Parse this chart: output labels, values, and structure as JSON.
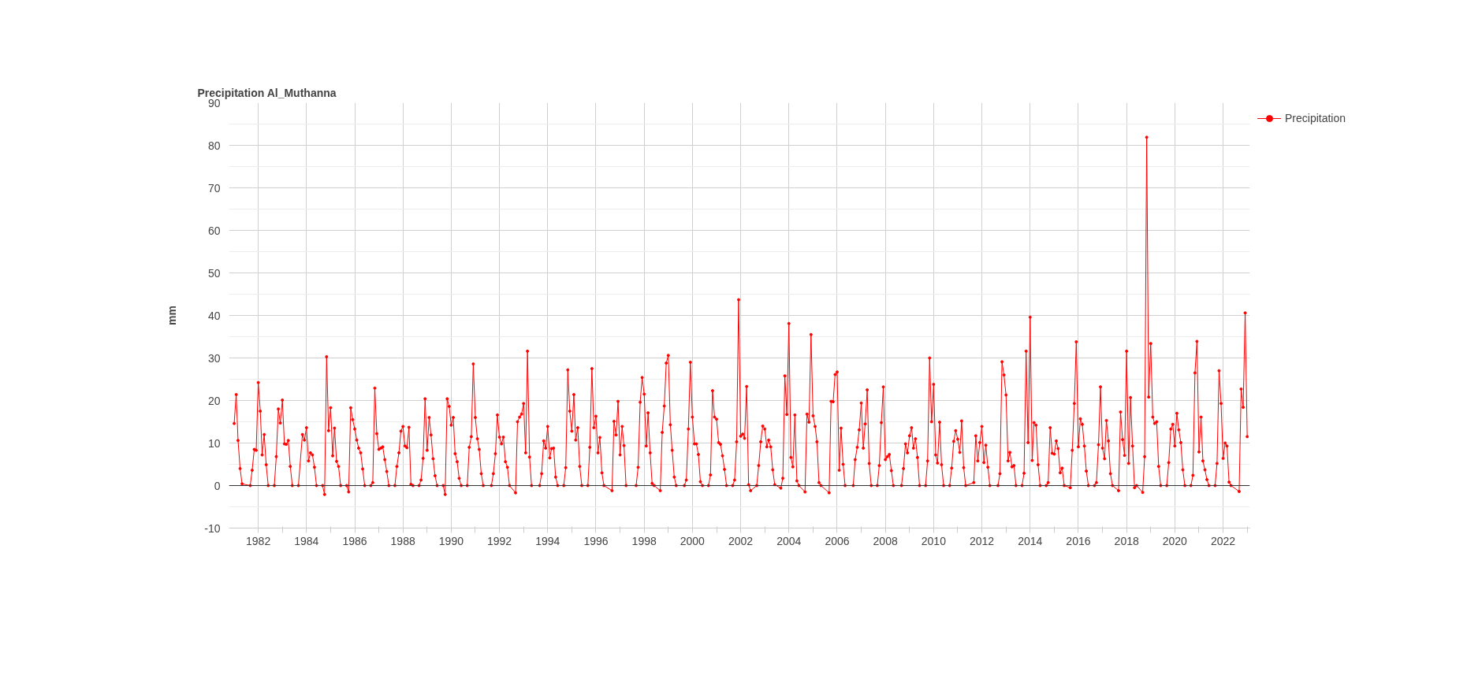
{
  "chart_data": {
    "type": "line",
    "title": "Precipitation Al_Muthanna",
    "ylabel": "mm",
    "xlim": [
      "1980-10-15",
      "2023-02-10"
    ],
    "ylim": [
      -10,
      90
    ],
    "yticks": [
      -10,
      0,
      10,
      20,
      30,
      40,
      50,
      60,
      70,
      80,
      90
    ],
    "xticks": [
      "1982",
      {
        "value": "1983",
        "label": null
      },
      "1984",
      {
        "value": "1985",
        "label": null
      },
      "1986",
      {
        "value": "1987",
        "label": null
      },
      "1988",
      {
        "value": "1989",
        "label": null
      },
      "1990",
      {
        "value": "1991",
        "label": null
      },
      "1992",
      {
        "value": "1993",
        "label": null
      },
      "1994",
      {
        "value": "1995",
        "label": null
      },
      "1996",
      {
        "value": "1997",
        "label": null
      },
      "1998",
      {
        "value": "1999",
        "label": null
      },
      "2000",
      {
        "value": "2001",
        "label": null
      },
      "2002",
      {
        "value": "2003",
        "label": null
      },
      "2004",
      {
        "value": "2005",
        "label": null
      },
      "2006",
      {
        "value": "2007",
        "label": null
      },
      "2008",
      {
        "value": "2009",
        "label": null
      },
      "2010",
      {
        "value": "2011",
        "label": null
      },
      "2012",
      {
        "value": "2013",
        "label": null
      },
      "2014",
      {
        "value": "2015",
        "label": null
      },
      "2016",
      {
        "value": "2017",
        "label": null
      },
      "2018",
      {
        "value": "2019",
        "label": null
      },
      "2020",
      {
        "value": "2021",
        "label": null
      },
      "2022",
      {
        "value": "2023",
        "label": null
      }
    ],
    "grid": true,
    "legend": "top right",
    "marker": "circle",
    "line_style": "solid",
    "ref_lines": [
      {
        "axis": "y",
        "value": 0,
        "color": "#333333"
      }
    ],
    "series": [
      {
        "name": "Precipitation",
        "color": "#ff0000",
        "x": [
          "1981-01",
          "1981-02",
          "1981-03",
          "1981-04",
          "1981-05",
          "1981-09",
          "1981-10",
          "1981-11",
          "1981-12",
          "1982-01",
          "1982-02",
          "1982-03",
          "1982-04",
          "1982-05",
          "1982-06",
          "1982-09",
          "1982-10",
          "1982-11",
          "1982-12",
          "1983-01",
          "1983-02",
          "1983-03",
          "1983-04",
          "1983-05",
          "1983-06",
          "1983-09",
          "1983-11",
          "1983-12",
          "1984-01",
          "1984-02",
          "1984-03",
          "1984-04",
          "1984-05",
          "1984-06",
          "1984-09",
          "1984-10",
          "1984-11",
          "1984-12",
          "1985-01",
          "1985-02",
          "1985-03",
          "1985-04",
          "1985-05",
          "1985-06",
          "1985-09",
          "1985-10",
          "1985-11",
          "1985-12",
          "1986-01",
          "1986-02",
          "1986-03",
          "1986-04",
          "1986-05",
          "1986-06",
          "1986-09",
          "1986-10",
          "1986-11",
          "1986-12",
          "1987-01",
          "1987-02",
          "1987-03",
          "1987-04",
          "1987-05",
          "1987-06",
          "1987-09",
          "1987-10",
          "1987-11",
          "1987-12",
          "1988-01",
          "1988-02",
          "1988-03",
          "1988-04",
          "1988-05",
          "1988-06",
          "1988-09",
          "1988-10",
          "1988-11",
          "1988-12",
          "1989-01",
          "1989-02",
          "1989-03",
          "1989-04",
          "1989-05",
          "1989-06",
          "1989-09",
          "1989-10",
          "1989-11",
          "1989-12",
          "1990-01",
          "1990-02",
          "1990-03",
          "1990-04",
          "1990-05",
          "1990-06",
          "1990-09",
          "1990-10",
          "1990-11",
          "1990-12",
          "1991-01",
          "1991-02",
          "1991-03",
          "1991-04",
          "1991-05",
          "1991-09",
          "1991-10",
          "1991-11",
          "1991-12",
          "1992-01",
          "1992-02",
          "1992-03",
          "1992-04",
          "1992-05",
          "1992-06",
          "1992-09",
          "1992-10",
          "1992-11",
          "1992-12",
          "1993-01",
          "1993-02",
          "1993-03",
          "1993-04",
          "1993-05",
          "1993-09",
          "1993-10",
          "1993-11",
          "1993-12",
          "1994-01",
          "1994-02",
          "1994-03",
          "1994-04",
          "1994-05",
          "1994-06",
          "1994-09",
          "1994-10",
          "1994-11",
          "1994-12",
          "1995-01",
          "1995-02",
          "1995-03",
          "1995-04",
          "1995-05",
          "1995-06",
          "1995-09",
          "1995-10",
          "1995-11",
          "1995-12",
          "1996-01",
          "1996-02",
          "1996-03",
          "1996-04",
          "1996-05",
          "1996-09",
          "1996-10",
          "1996-11",
          "1996-12",
          "1997-01",
          "1997-02",
          "1997-03",
          "1997-04",
          "1997-09",
          "1997-10",
          "1997-11",
          "1997-12",
          "1998-01",
          "1998-02",
          "1998-03",
          "1998-04",
          "1998-05",
          "1998-06",
          "1998-09",
          "1998-10",
          "1998-11",
          "1998-12",
          "1999-01",
          "1999-02",
          "1999-03",
          "1999-04",
          "1999-05",
          "1999-09",
          "1999-10",
          "1999-11",
          "1999-12",
          "2000-01",
          "2000-02",
          "2000-03",
          "2000-04",
          "2000-05",
          "2000-06",
          "2000-09",
          "2000-10",
          "2000-11",
          "2000-12",
          "2001-01",
          "2001-02",
          "2001-03",
          "2001-04",
          "2001-05",
          "2001-06",
          "2001-09",
          "2001-10",
          "2001-11",
          "2001-12",
          "2002-01",
          "2002-02",
          "2002-03",
          "2002-04",
          "2002-05",
          "2002-06",
          "2002-09",
          "2002-10",
          "2002-11",
          "2002-12",
          "2003-01",
          "2003-02",
          "2003-03",
          "2003-04",
          "2003-05",
          "2003-06",
          "2003-09",
          "2003-10",
          "2003-11",
          "2003-12",
          "2004-01",
          "2004-02",
          "2004-03",
          "2004-04",
          "2004-05",
          "2004-06",
          "2004-09",
          "2004-10",
          "2004-11",
          "2004-12",
          "2005-01",
          "2005-02",
          "2005-03",
          "2005-04",
          "2005-05",
          "2005-09",
          "2005-10",
          "2005-11",
          "2005-12",
          "2006-01",
          "2006-02",
          "2006-03",
          "2006-04",
          "2006-05",
          "2006-09",
          "2006-10",
          "2006-11",
          "2006-12",
          "2007-01",
          "2007-02",
          "2007-03",
          "2007-04",
          "2007-05",
          "2007-06",
          "2007-09",
          "2007-10",
          "2007-11",
          "2007-12",
          "2008-01",
          "2008-02",
          "2008-03",
          "2008-04",
          "2008-05",
          "2008-09",
          "2008-10",
          "2008-11",
          "2008-12",
          "2009-01",
          "2009-02",
          "2009-03",
          "2009-04",
          "2009-05",
          "2009-06",
          "2009-09",
          "2009-10",
          "2009-11",
          "2009-12",
          "2010-01",
          "2010-02",
          "2010-03",
          "2010-04",
          "2010-05",
          "2010-06",
          "2010-09",
          "2010-10",
          "2010-11",
          "2010-12",
          "2011-01",
          "2011-02",
          "2011-03",
          "2011-04",
          "2011-05",
          "2011-09",
          "2011-10",
          "2011-11",
          "2011-12",
          "2012-01",
          "2012-02",
          "2012-03",
          "2012-04",
          "2012-05",
          "2012-09",
          "2012-10",
          "2012-11",
          "2012-12",
          "2013-01",
          "2013-02",
          "2013-03",
          "2013-04",
          "2013-05",
          "2013-06",
          "2013-09",
          "2013-10",
          "2013-11",
          "2013-12",
          "2014-01",
          "2014-02",
          "2014-03",
          "2014-04",
          "2014-05",
          "2014-06",
          "2014-09",
          "2014-10",
          "2014-11",
          "2014-12",
          "2015-01",
          "2015-02",
          "2015-03",
          "2015-04",
          "2015-05",
          "2015-06",
          "2015-09",
          "2015-10",
          "2015-11",
          "2015-12",
          "2016-01",
          "2016-02",
          "2016-03",
          "2016-04",
          "2016-05",
          "2016-06",
          "2016-09",
          "2016-10",
          "2016-11",
          "2016-12",
          "2017-01",
          "2017-02",
          "2017-03",
          "2017-04",
          "2017-05",
          "2017-06",
          "2017-09",
          "2017-10",
          "2017-11",
          "2017-12",
          "2018-01",
          "2018-02",
          "2018-03",
          "2018-04",
          "2018-05",
          "2018-06",
          "2018-09",
          "2018-10",
          "2018-11",
          "2018-12",
          "2019-01",
          "2019-02",
          "2019-03",
          "2019-04",
          "2019-05",
          "2019-06",
          "2019-09",
          "2019-10",
          "2019-11",
          "2019-12",
          "2020-01",
          "2020-02",
          "2020-03",
          "2020-04",
          "2020-05",
          "2020-06",
          "2020-09",
          "2020-10",
          "2020-11",
          "2020-12",
          "2021-01",
          "2021-02",
          "2021-03",
          "2021-04",
          "2021-05",
          "2021-06",
          "2021-09",
          "2021-10",
          "2021-11",
          "2021-12",
          "2022-01",
          "2022-02",
          "2022-03",
          "2022-04",
          "2022-05",
          "2022-09",
          "2022-10",
          "2022-11",
          "2022-12",
          "2023-01"
        ],
        "values": [
          14.6,
          21.4,
          10.6,
          4.0,
          0.4,
          0,
          3.6,
          8.5,
          8.3,
          24.2,
          17.5,
          7.2,
          12.0,
          4.9,
          0,
          0,
          6.8,
          18.0,
          14.7,
          20.1,
          9.8,
          9.7,
          10.6,
          4.5,
          0,
          0,
          12.0,
          10.7,
          13.6,
          5.8,
          7.7,
          7.2,
          4.3,
          0,
          0,
          -2.1,
          30.3,
          12.9,
          18.3,
          7.0,
          13.5,
          5.7,
          4.5,
          0,
          0,
          -1.5,
          18.3,
          15.5,
          13.3,
          10.7,
          8.8,
          7.7,
          3.9,
          0,
          0,
          0.7,
          22.9,
          12.2,
          8.5,
          8.8,
          9.1,
          6.1,
          3.3,
          0,
          0,
          4.5,
          7.7,
          12.8,
          13.9,
          9.3,
          8.9,
          13.7,
          0.3,
          0,
          0,
          1.3,
          6.4,
          20.4,
          8.3,
          16.0,
          11.9,
          6.3,
          2.3,
          0,
          0,
          -2.1,
          20.4,
          18.6,
          14.2,
          16.0,
          7.5,
          5.6,
          1.7,
          0,
          0,
          9.0,
          11.5,
          28.6,
          16.0,
          11.0,
          8.5,
          2.8,
          0,
          0,
          2.8,
          7.5,
          16.6,
          11.4,
          9.8,
          11.4,
          5.6,
          4.3,
          0,
          -1.7,
          15.0,
          16.1,
          16.8,
          19.3,
          7.7,
          31.6,
          6.7,
          0,
          0,
          2.8,
          10.5,
          8.8,
          13.9,
          6.5,
          8.7,
          8.8,
          2.0,
          0,
          0,
          4.2,
          27.2,
          17.5,
          12.8,
          21.4,
          10.7,
          13.6,
          4.5,
          0,
          0,
          9.0,
          27.5,
          13.6,
          16.3,
          7.7,
          11.3,
          3.0,
          0,
          -1.2,
          15.1,
          11.9,
          19.8,
          7.2,
          13.9,
          9.4,
          0,
          0,
          4.3,
          19.6,
          25.4,
          21.5,
          9.3,
          17.1,
          7.7,
          0.5,
          0,
          -1.2,
          12.5,
          18.7,
          28.8,
          30.6,
          14.3,
          8.3,
          2.0,
          0,
          0,
          1.3,
          13.3,
          29.0,
          16.1,
          9.8,
          9.8,
          7.3,
          0.9,
          0,
          0,
          2.5,
          22.3,
          16.1,
          15.6,
          10.1,
          9.7,
          7.0,
          3.8,
          0,
          0,
          1.3,
          10.3,
          43.7,
          11.6,
          12.1,
          11.1,
          23.3,
          0.2,
          -1.2,
          0,
          4.7,
          10.3,
          14.0,
          13.3,
          9.1,
          10.7,
          9.1,
          3.7,
          0.2,
          -0.6,
          1.7,
          25.8,
          16.7,
          38.1,
          6.6,
          4.4,
          16.6,
          1.1,
          0,
          -1.5,
          16.8,
          14.9,
          35.5,
          16.4,
          13.9,
          10.3,
          0.7,
          0,
          -1.7,
          19.8,
          19.7,
          26.1,
          26.7,
          3.6,
          13.5,
          5.0,
          0,
          0,
          6.1,
          9.0,
          13.1,
          19.4,
          8.8,
          14.5,
          22.5,
          5.2,
          0,
          0,
          4.7,
          14.8,
          23.2,
          6.1,
          6.8,
          7.3,
          3.5,
          0,
          0,
          4.0,
          9.8,
          7.7,
          11.7,
          13.6,
          8.8,
          11.0,
          6.6,
          0,
          0,
          5.8,
          30.0,
          15.0,
          23.8,
          7.2,
          5.3,
          14.9,
          4.9,
          0,
          0,
          4.1,
          10.4,
          12.9,
          10.9,
          7.8,
          15.2,
          4.2,
          0,
          0.7,
          11.7,
          5.8,
          10.1,
          13.9,
          5.4,
          9.5,
          4.3,
          0,
          0,
          2.8,
          29.1,
          26.0,
          21.3,
          5.8,
          7.8,
          4.4,
          4.7,
          0,
          0,
          2.9,
          31.6,
          10.1,
          39.6,
          5.9,
          14.8,
          14.2,
          4.9,
          0,
          0,
          0.7,
          13.6,
          7.6,
          7.4,
          10.5,
          8.7,
          3.0,
          4.1,
          0,
          -0.5,
          8.3,
          19.3,
          33.8,
          9.1,
          15.7,
          14.4,
          9.3,
          3.4,
          0,
          0,
          0.7,
          9.6,
          23.2,
          8.8,
          6.3,
          15.3,
          10.5,
          2.8,
          0,
          -1.2,
          17.3,
          10.8,
          7.1,
          31.6,
          5.2,
          20.7,
          9.3,
          -0.5,
          0,
          -1.6,
          6.8,
          81.9,
          20.8,
          33.4,
          16.1,
          14.6,
          15.0,
          4.5,
          0,
          0,
          5.4,
          13.3,
          14.4,
          9.3,
          17.0,
          13.1,
          10.1,
          3.7,
          0,
          0,
          2.4,
          26.5,
          33.9,
          7.9,
          16.1,
          5.8,
          3.7,
          1.4,
          0,
          0,
          5.2,
          27.0,
          19.3,
          6.4,
          10.0,
          9.3,
          0.8,
          0,
          -1.4,
          22.7,
          18.4,
          40.6,
          11.5
        ]
      }
    ]
  }
}
